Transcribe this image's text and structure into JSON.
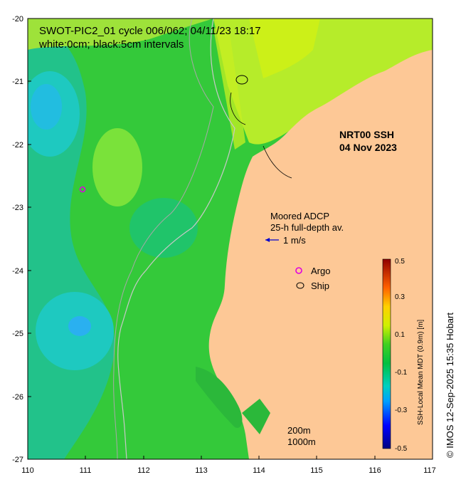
{
  "title": {
    "line1": "SWOT-PIC2_01 cycle 006/062; 04/11/23 18:17",
    "line2": "white:0cm; black:5cm intervals"
  },
  "product": {
    "name": "NRT00 SSH",
    "date": "04 Nov 2023"
  },
  "adcp": {
    "line1": "Moored ADCP",
    "line2": "25-h full-depth av.",
    "scale_label": "1 m/s"
  },
  "legend": {
    "argo": "Argo",
    "ship": "Ship",
    "argo_color": "#e000e0",
    "ship_color": "#000000"
  },
  "isobaths": {
    "shallow": "200m",
    "deep": "1000m"
  },
  "colorbar": {
    "label": "SSH-Local Mean MDT (0.9m) [m]",
    "ticks": [
      "0.5",
      "0.3",
      "0.1",
      "-0.1",
      "-0.3",
      "-0.5"
    ],
    "range": [
      -0.5,
      0.5
    ]
  },
  "credit": "© IMOS 12-Sep-2025 15:35 Hobart",
  "axes": {
    "x_ticks": [
      "110",
      "111",
      "112",
      "113",
      "114",
      "115",
      "116",
      "117"
    ],
    "y_ticks": [
      "-20",
      "-21",
      "-22",
      "-23",
      "-24",
      "-25",
      "-26",
      "-27"
    ]
  },
  "colors": {
    "land": "#fdc896",
    "ocean_green": "#2ec92e",
    "current_arrow": "#0000cc"
  }
}
